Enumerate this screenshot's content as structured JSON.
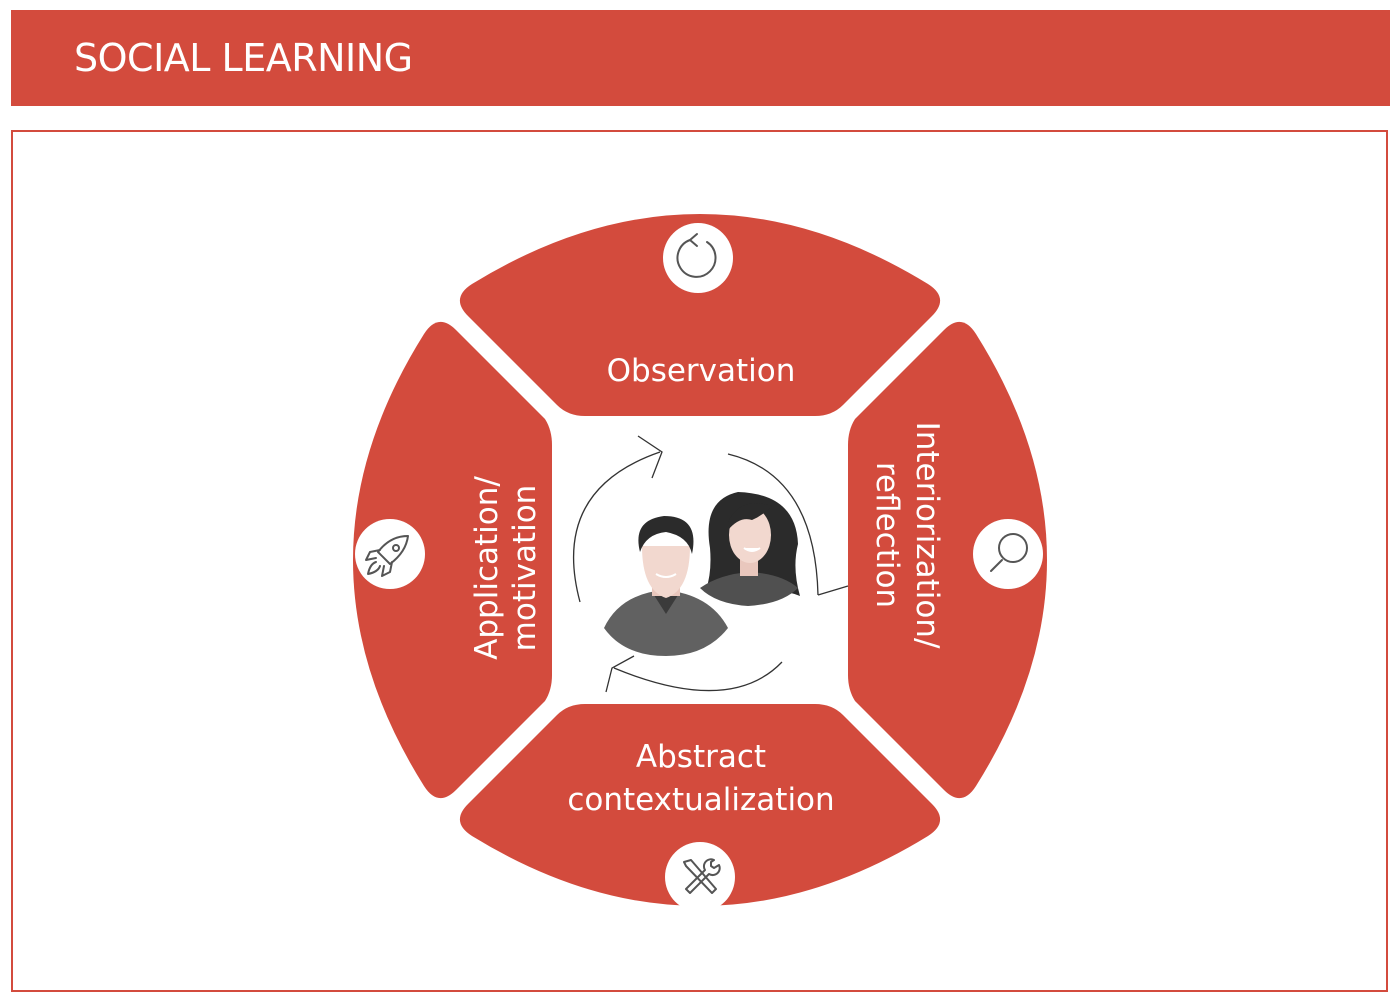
{
  "header": {
    "title": "SOCIAL LEARNING"
  },
  "colors": {
    "accent": "#d34b3d",
    "icon_stroke": "#555555",
    "background": "#ffffff"
  },
  "cycle": {
    "segments": [
      {
        "id": "observation",
        "label_lines": [
          "Observation"
        ],
        "icon": "refresh-icon"
      },
      {
        "id": "interiorization",
        "label_lines": [
          "Interiorization/",
          "reflection"
        ],
        "icon": "magnifier-icon"
      },
      {
        "id": "abstract",
        "label_lines": [
          "Abstract",
          "contextualization"
        ],
        "icon": "tools-icon"
      },
      {
        "id": "application",
        "label_lines": [
          "Application/",
          "motivation"
        ],
        "icon": "rocket-icon"
      }
    ],
    "center_icon": "people-icon"
  }
}
